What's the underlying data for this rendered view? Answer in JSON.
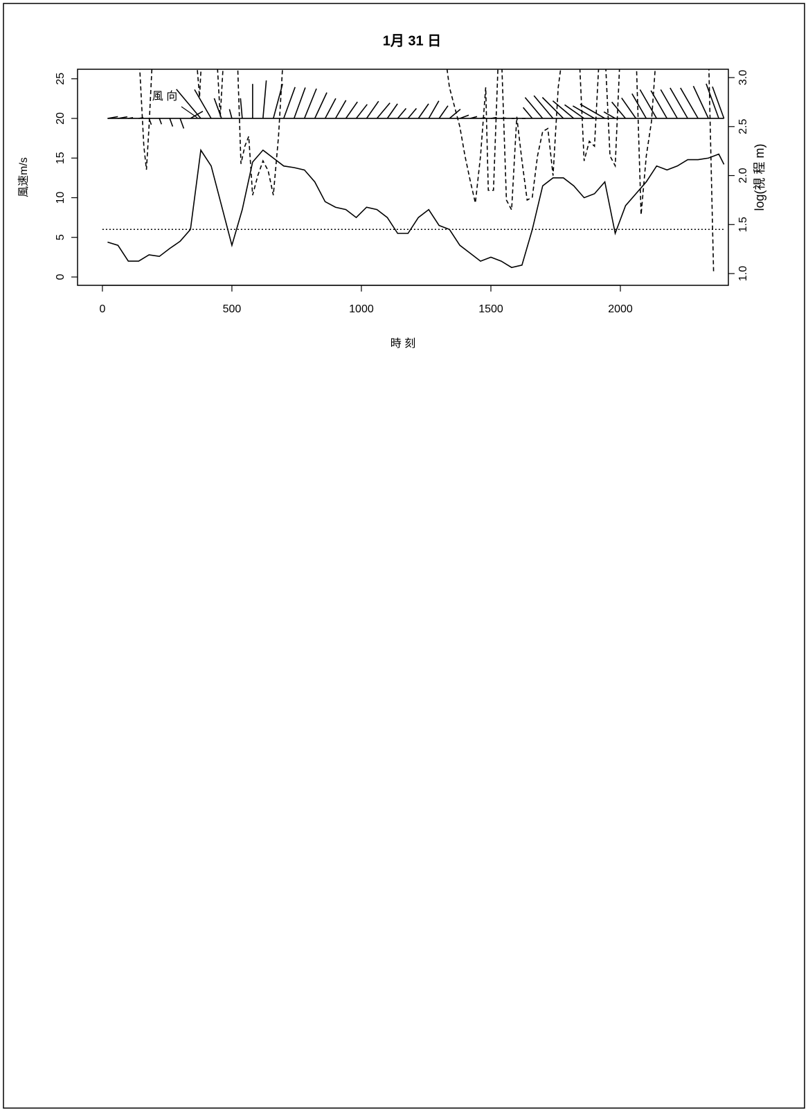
{
  "chart_data": {
    "type": "line",
    "title": "1月 31 日",
    "xlabel": "時 刻",
    "ylabel": "風速m/s",
    "y2label": "log(視 程 m)",
    "annotation": "風 向",
    "xlim": [
      -96,
      2417
    ],
    "xticks": [
      0,
      500,
      1000,
      1500,
      2000
    ],
    "ylim": [
      -1.05,
      26.2
    ],
    "yticks": [
      0,
      5,
      10,
      15,
      20,
      25
    ],
    "y2lim": [
      0.88,
      3.085
    ],
    "y2ticks": [
      {
        "value": 1,
        "label": "1.0"
      },
      {
        "value": 1.5,
        "label": "1.5"
      },
      {
        "value": 2,
        "label": "2.0"
      },
      {
        "value": 2.5,
        "label": "2.5"
      },
      {
        "value": 3,
        "label": "3.0"
      }
    ],
    "hline": 6,
    "series": [
      {
        "color": "#000000",
        "style": "solid",
        "x": [
          20,
          60,
          100,
          140,
          180,
          220,
          260,
          300,
          340,
          380,
          420,
          460,
          500,
          540,
          580,
          620,
          660,
          700,
          740,
          780,
          820,
          860,
          900,
          940,
          980,
          1020,
          1060,
          1100,
          1140,
          1180,
          1220,
          1260,
          1300,
          1340,
          1380,
          1420,
          1460,
          1500,
          1540,
          1580,
          1620,
          1660,
          1700,
          1740,
          1780,
          1820,
          1860,
          1900,
          1940,
          1980,
          2020,
          2060,
          2100,
          2140,
          2180,
          2220,
          2260,
          2300,
          2340,
          2380,
          2400
        ],
        "values": [
          4.4,
          4.0,
          2.0,
          2.0,
          2.8,
          2.6,
          3.6,
          4.5,
          6.0,
          16.0,
          14.0,
          9.0,
          4.0,
          8.5,
          14.5,
          16.0,
          15.0,
          14.0,
          13.8,
          13.5,
          12.0,
          9.5,
          8.8,
          8.5,
          7.5,
          8.8,
          8.5,
          7.5,
          5.5,
          5.5,
          7.5,
          8.5,
          6.5,
          6.0,
          4.0,
          3.0,
          2.0,
          2.5,
          2.0,
          1.2,
          1.5,
          6.0,
          11.5,
          12.5,
          12.5,
          11.5,
          10.0,
          10.5,
          12.0,
          5.5,
          9.0,
          10.5,
          12.0,
          14.0,
          13.5,
          14.0,
          14.8,
          14.8,
          15.0,
          15.5,
          14.2
        ]
      },
      {
        "color": "#000000",
        "style": "dashed",
        "axis": "y2",
        "x": [
          20,
          140,
          160,
          170,
          180,
          195,
          360,
          375,
          385,
          440,
          455,
          470,
          520,
          535,
          550,
          565,
          580,
          600,
          620,
          640,
          660,
          680,
          700,
          1320,
          1340,
          1380,
          1400,
          1420,
          1440,
          1460,
          1480,
          1490,
          1510,
          1530,
          1540,
          1560,
          1580,
          1600,
          1620,
          1640,
          1660,
          1680,
          1700,
          1720,
          1740,
          1760,
          1780,
          1840,
          1860,
          1880,
          1900,
          1920,
          1940,
          1960,
          1980,
          2000,
          2060,
          2080,
          2100,
          2120,
          2140,
          2340,
          2360
        ],
        "values": [
          3.3,
          3.3,
          2.3,
          2.06,
          2.5,
          3.3,
          3.3,
          2.8,
          3.3,
          3.3,
          2.6,
          3.3,
          3.3,
          2.12,
          2.3,
          2.4,
          1.8,
          2.0,
          2.15,
          2.05,
          1.8,
          2.4,
          3.3,
          3.3,
          2.9,
          2.5,
          2.2,
          1.95,
          1.72,
          2.2,
          2.9,
          1.85,
          1.85,
          3.3,
          3.3,
          1.75,
          1.65,
          2.6,
          2.15,
          1.75,
          1.78,
          2.2,
          2.45,
          2.48,
          2.0,
          2.9,
          3.3,
          3.3,
          2.15,
          2.35,
          2.3,
          3.3,
          3.3,
          2.2,
          2.1,
          3.3,
          3.3,
          1.6,
          2.2,
          2.55,
          3.3,
          3.3,
          1.0
        ]
      }
    ],
    "wind_direction": {
      "base": 20,
      "values": [
        80,
        80,
        80,
        80,
        160,
        160,
        160,
        160,
        60,
        320,
        330,
        340,
        345,
        355,
        0,
        5,
        15,
        20,
        20,
        22,
        25,
        28,
        30,
        35,
        38,
        35,
        40,
        35,
        40,
        40,
        35,
        30,
        35,
        50,
        70,
        75,
        80,
        80,
        85,
        90,
        90,
        320,
        320,
        320,
        315,
        310,
        305,
        300,
        300,
        300,
        320,
        325,
        330,
        330,
        330,
        330,
        330,
        330,
        335,
        340,
        340
      ]
    }
  }
}
